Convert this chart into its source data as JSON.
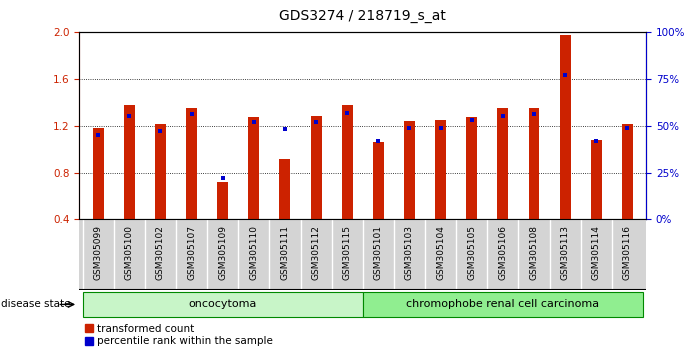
{
  "title": "GDS3274 / 218719_s_at",
  "samples": [
    "GSM305099",
    "GSM305100",
    "GSM305102",
    "GSM305107",
    "GSM305109",
    "GSM305110",
    "GSM305111",
    "GSM305112",
    "GSM305115",
    "GSM305101",
    "GSM305103",
    "GSM305104",
    "GSM305105",
    "GSM305106",
    "GSM305108",
    "GSM305113",
    "GSM305114",
    "GSM305116"
  ],
  "transformed_count": [
    1.18,
    1.38,
    1.21,
    1.35,
    0.72,
    1.27,
    0.92,
    1.28,
    1.38,
    1.06,
    1.24,
    1.25,
    1.27,
    1.35,
    1.35,
    1.97,
    1.08,
    1.21
  ],
  "percentile_rank": [
    45,
    55,
    47,
    56,
    22,
    52,
    48,
    52,
    57,
    42,
    49,
    49,
    53,
    55,
    56,
    77,
    42,
    49
  ],
  "group_labels": [
    "oncocytoma",
    "chromophobe renal cell carcinoma"
  ],
  "n_group1": 9,
  "n_group2": 9,
  "bar_color": "#cc2200",
  "dot_color": "#0000cc",
  "ylim": [
    0.4,
    2.0
  ],
  "y2lim": [
    0,
    100
  ],
  "yticks": [
    0.4,
    0.8,
    1.2,
    1.6,
    2.0
  ],
  "y2ticks": [
    0,
    25,
    50,
    75,
    100
  ],
  "title_fontsize": 10,
  "label_fontsize": 6.5,
  "tick_fontsize": 7.5,
  "group_color1": "#c8f5c8",
  "group_color2": "#90ee90",
  "group_edge_color": "#008800",
  "label_bg_color": "#d4d4d4"
}
